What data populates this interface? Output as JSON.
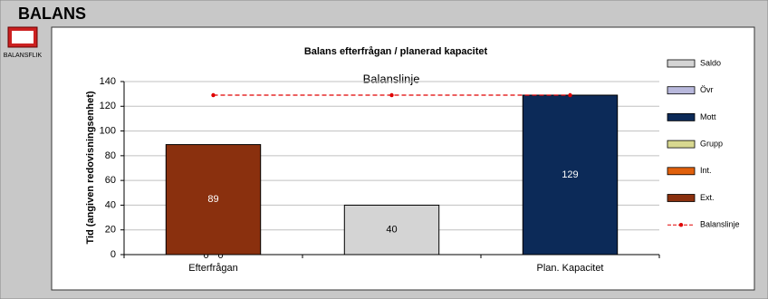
{
  "header": {
    "title": "BALANS",
    "icon_label": "BALANSFLIK"
  },
  "chart_data": {
    "type": "bar",
    "stacked": true,
    "title": "Balans efterfrågan / planerad kapacitet",
    "y_label": "Tid (angiven redovisningsenhet)",
    "annotation": "Balanslinje",
    "categories": [
      "Efterfrågan",
      null,
      "Plan. Kapacitet"
    ],
    "ylim": [
      0,
      140
    ],
    "yticks": [
      0,
      20,
      40,
      60,
      80,
      100,
      120,
      140
    ],
    "grid": true,
    "legend": "right",
    "series": [
      {
        "name": "Saldo",
        "color": "#d4d4d4",
        "values": [
          null,
          40,
          null
        ]
      },
      {
        "name": "Övr",
        "color": "#b8b8dc",
        "values": [
          null,
          null,
          null
        ]
      },
      {
        "name": "Mott",
        "color": "#0c2a58",
        "values": [
          null,
          null,
          129
        ]
      },
      {
        "name": "Grupp",
        "color": "#d8d890",
        "values": [
          0,
          null,
          null
        ]
      },
      {
        "name": "Int.",
        "color": "#e0600c",
        "values": [
          0,
          null,
          null
        ]
      },
      {
        "name": "Ext.",
        "color": "#8a300e",
        "values": [
          89,
          null,
          null
        ]
      },
      {
        "name": "Balanslinje",
        "type": "line",
        "color": "#e00000",
        "values": [
          129,
          129,
          129
        ]
      }
    ]
  }
}
